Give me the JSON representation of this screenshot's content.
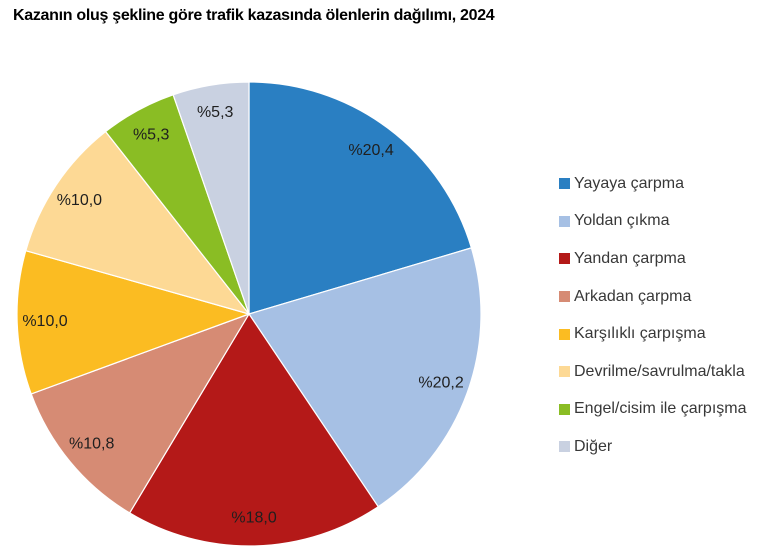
{
  "title": "Kazanın oluş şekline göre trafik kazasında ölenlerin dağılımı, 2024",
  "chart_data": {
    "type": "pie",
    "title": "Kazanın oluş şekline göre trafik kazasında ölenlerin dağılımı, 2024",
    "unit": "percent",
    "start_angle_deg": 0,
    "direction": "clockwise",
    "legend_position": "right",
    "grid": false,
    "slices": [
      {
        "label": "Yayaya çarpma",
        "value": 20.4,
        "display": "%20,4",
        "color": "#2A7FC2"
      },
      {
        "label": "Yoldan çıkma",
        "value": 20.2,
        "display": "%20,2",
        "color": "#A6C0E4"
      },
      {
        "label": "Yandan çarpma",
        "value": 18.0,
        "display": "%18,0",
        "color": "#B41918"
      },
      {
        "label": "Arkadan çarpma",
        "value": 10.8,
        "display": "%10,8",
        "color": "#D68B74"
      },
      {
        "label": "Karşılıklı çarpışma",
        "value": 10.0,
        "display": "%10,0",
        "color": "#FBBC22"
      },
      {
        "label": "Devrilme/savrulma/takla",
        "value": 10.0,
        "display": "%10,0",
        "color": "#FDD995"
      },
      {
        "label": "Engel/cisim ile çarpışma",
        "value": 5.3,
        "display": "%5,3",
        "color": "#8ABD24"
      },
      {
        "label": "Diğer",
        "value": 5.3,
        "display": "%5,3",
        "color": "#C9D1E1"
      }
    ]
  }
}
